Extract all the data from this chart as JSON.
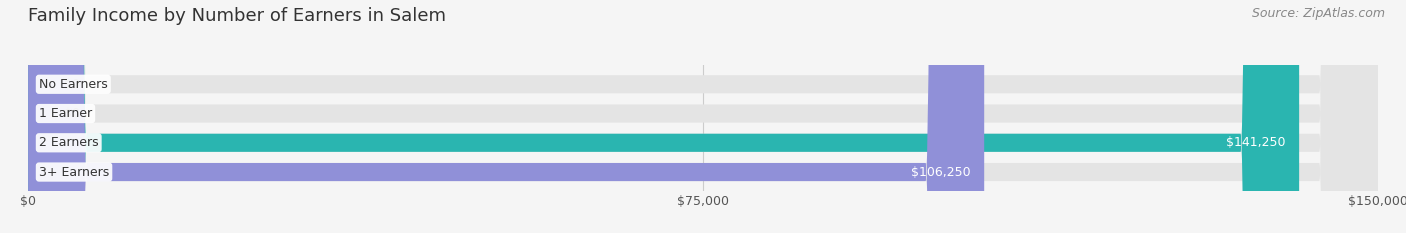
{
  "title": "Family Income by Number of Earners in Salem",
  "source": "Source: ZipAtlas.com",
  "categories": [
    "No Earners",
    "1 Earner",
    "2 Earners",
    "3+ Earners"
  ],
  "values": [
    0,
    0,
    141250,
    106250
  ],
  "bar_colors": [
    "#a8c0e0",
    "#c8a8c8",
    "#2ab5b0",
    "#9090d8"
  ],
  "background_color": "#f5f5f5",
  "bar_bg_color": "#e4e4e4",
  "xlim": [
    0,
    150000
  ],
  "xtick_values": [
    0,
    75000,
    150000
  ],
  "xtick_labels": [
    "$0",
    "$75,000",
    "$150,000"
  ],
  "title_fontsize": 13,
  "source_fontsize": 9,
  "tick_fontsize": 9,
  "bar_label_fontsize": 9
}
